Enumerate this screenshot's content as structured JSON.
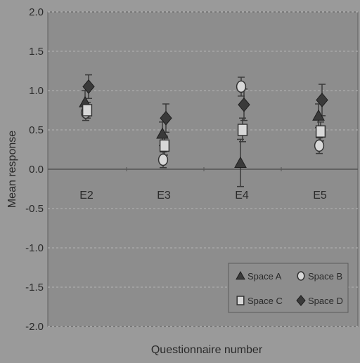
{
  "chart_data": {
    "type": "scatter",
    "title": "",
    "xlabel": "Questionnaire number",
    "ylabel": "Mean response",
    "categories": [
      "E2",
      "E3",
      "E4",
      "E5"
    ],
    "ylim": [
      -2.0,
      2.0
    ],
    "yticks": [
      "2.0",
      "1.5",
      "1.0",
      "0.5",
      "0.0",
      "-0.5",
      "-1.0",
      "-1.5",
      "-2.0"
    ],
    "grid": true,
    "legend_position": "bottom-right",
    "series": [
      {
        "name": "Space A",
        "marker": "triangle",
        "values": [
          0.85,
          0.45,
          0.08,
          0.68
        ],
        "error": [
          0.15,
          0.15,
          0.3,
          0.15
        ]
      },
      {
        "name": "Space B",
        "marker": "circle",
        "values": [
          0.72,
          0.12,
          1.05,
          0.3
        ],
        "error": [
          0.1,
          0.1,
          0.12,
          0.1
        ]
      },
      {
        "name": "Space C",
        "marker": "square",
        "values": [
          0.75,
          0.3,
          0.5,
          0.48
        ],
        "error": [
          0.1,
          0.12,
          0.15,
          0.12
        ]
      },
      {
        "name": "Space D",
        "marker": "diamond",
        "values": [
          1.05,
          0.65,
          0.82,
          0.88
        ],
        "error": [
          0.15,
          0.18,
          0.2,
          0.2
        ]
      }
    ],
    "colors": {
      "background": "#9a9a9a",
      "plot_area": "#8d8d8d",
      "marker": "#3a3a3a",
      "marker_light": "#d8d8d8",
      "axis": "#555555",
      "grid": "#b5b5b5",
      "text": "#2a2a2a"
    }
  }
}
